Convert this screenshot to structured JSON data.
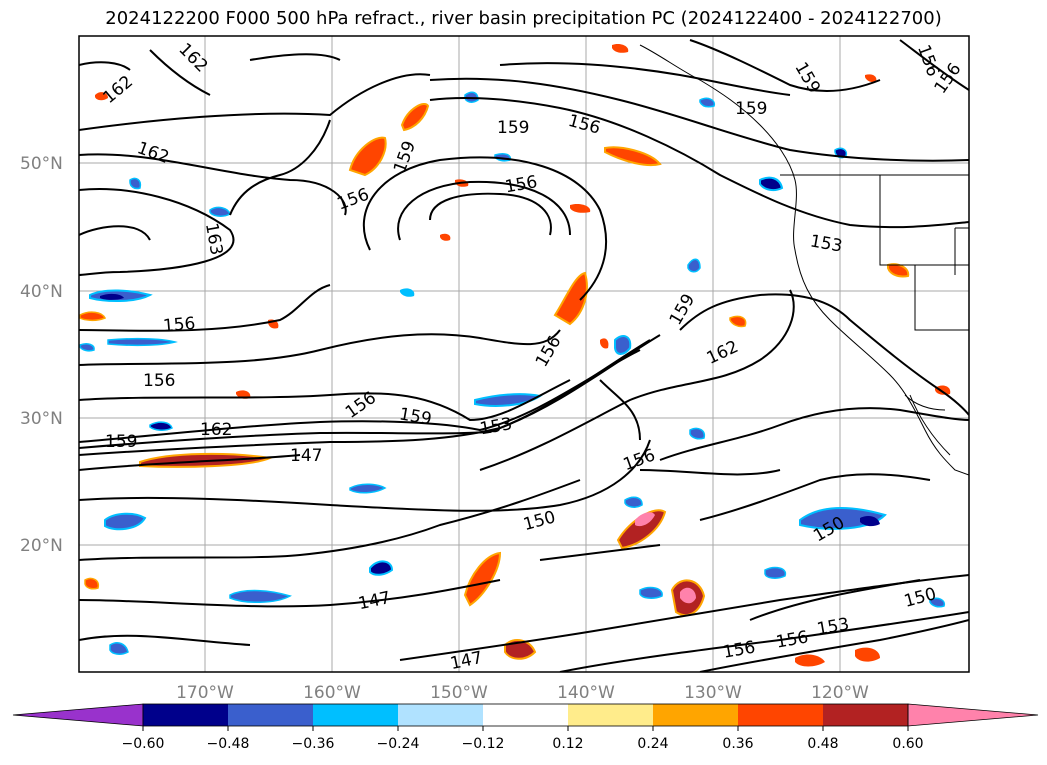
{
  "title": "2024122200 F000 500 hPa refract., river basin precipitation PC (2024122400 - 2024122700)",
  "map": {
    "lat_labels": [
      "50°N",
      "40°N",
      "30°N",
      "20°N"
    ],
    "lon_labels": [
      "170°W",
      "160°W",
      "150°W",
      "140°W",
      "130°W",
      "120°W"
    ],
    "contour_labels": [
      "162",
      "162",
      "162",
      "163",
      "159",
      "159",
      "156",
      "159",
      "159",
      "156",
      "156",
      "153",
      "156",
      "156",
      "156",
      "156",
      "159",
      "159",
      "162",
      "162",
      "159",
      "153",
      "147",
      "147",
      "147",
      "150",
      "156",
      "150",
      "150",
      "156",
      "156",
      "153",
      "156",
      "156"
    ]
  },
  "colorbar": {
    "ticks": [
      "−0.60",
      "−0.48",
      "−0.36",
      "−0.24",
      "−0.12",
      "0.12",
      "0.24",
      "0.36",
      "0.48",
      "0.60"
    ],
    "colors": [
      "#9932cc",
      "#00008b",
      "#3a5fcd",
      "#00bfff",
      "#b0e2ff",
      "#ffffff",
      "#ffec8b",
      "#ffa500",
      "#ff4500",
      "#b22222",
      "#ff82ab"
    ]
  }
}
